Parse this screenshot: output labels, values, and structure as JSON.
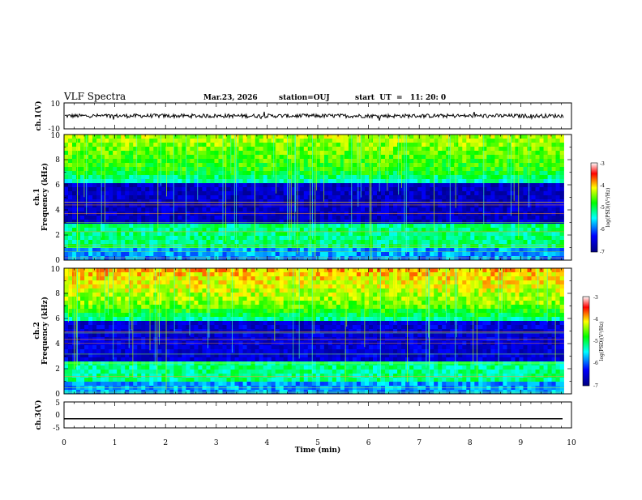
{
  "header": {
    "title": "VLF Spectra",
    "date": "Mar.23, 2026",
    "station": "station=OUJ",
    "start": "start  UT  =   11: 20: 0"
  },
  "chart_data": [
    {
      "type": "line",
      "name": "ch1-waveform",
      "ylabel": "ch.1(V)",
      "ylim": [
        -10,
        10
      ],
      "yticklabels": [
        "10",
        "-10"
      ],
      "description_values": {
        "mean": 0,
        "amplitude": 1.5
      }
    },
    {
      "type": "heatmap",
      "name": "ch1-spectrogram",
      "ylabel_line1": "ch.1",
      "ylabel_line2": "Frequency  (kHz)",
      "ylim": [
        0,
        10
      ],
      "yticklabels": [
        "0",
        "2",
        "4",
        "6",
        "8",
        "10"
      ],
      "colorbar": {
        "label": "log(PSD)(V²/Hz)",
        "range": [
          -7,
          -3
        ],
        "ticklabels": [
          "-3",
          "-4",
          "-5",
          "-6",
          "-7"
        ]
      }
    },
    {
      "type": "heatmap",
      "name": "ch2-spectrogram",
      "ylabel_line1": "ch.2",
      "ylabel_line2": "Frequency  (kHz)",
      "ylim": [
        0,
        10
      ],
      "yticklabels": [
        "0",
        "2",
        "4",
        "6",
        "8",
        "10"
      ],
      "colorbar": {
        "label": "log(PSD)(V²/Hz)",
        "range": [
          -7,
          -3
        ],
        "ticklabels": [
          "-3",
          "-4",
          "-5",
          "-6",
          "-7"
        ]
      }
    },
    {
      "type": "line",
      "name": "ch3-waveform",
      "ylabel": "ch.3(V)",
      "ylim": [
        -5,
        5
      ],
      "yticklabels": [
        "5",
        "0",
        "-5"
      ],
      "description_values": {
        "level": -1.5
      }
    }
  ],
  "xaxis": {
    "label": "Time  (min)",
    "range": [
      0,
      10
    ],
    "data_end": 9.85,
    "ticklabels": [
      "0",
      "1",
      "2",
      "3",
      "4",
      "5",
      "6",
      "7",
      "8",
      "9",
      "10"
    ]
  },
  "colors": {
    "axis": "#000000",
    "background": "#ffffff"
  }
}
